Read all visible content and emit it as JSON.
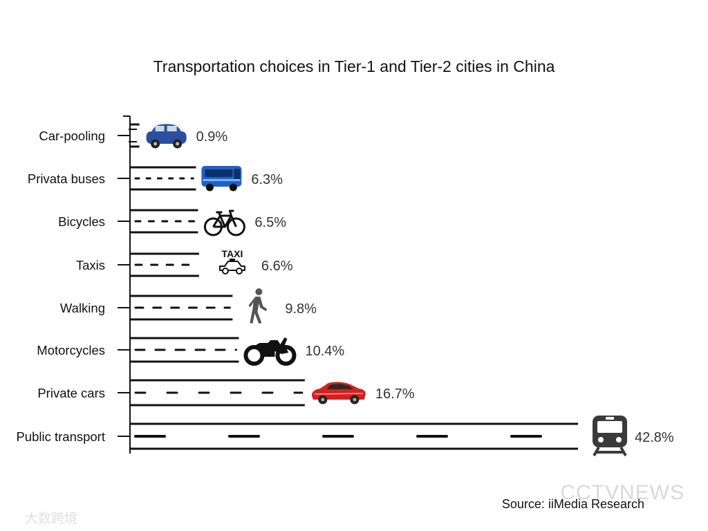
{
  "chart_data": {
    "type": "bar",
    "orientation": "horizontal",
    "title": "Transportation choices in Tier-1 and Tier-2 cities in China",
    "categories": [
      "Car-pooling",
      "Privata buses",
      "Bicycles",
      "Taxis",
      "Walking",
      "Motorcycles",
      "Private cars",
      "Public transport"
    ],
    "values": [
      0.9,
      6.3,
      6.5,
      6.6,
      9.8,
      10.4,
      16.7,
      42.8
    ],
    "value_labels": [
      "0.9%",
      "6.3%",
      "6.5%",
      "6.6%",
      "9.8%",
      "10.4%",
      "16.7%",
      "42.8%"
    ],
    "icons": [
      "mini-car-icon",
      "bus-icon",
      "bicycle-icon",
      "taxi-icon",
      "walking-person-icon",
      "motorcycle-icon",
      "sports-car-icon",
      "train-icon"
    ],
    "taxi_sign": "TAXI",
    "unit": "%",
    "xlim": [
      0,
      42.8
    ],
    "grid": false,
    "legend": "none",
    "colors": {
      "road": "#111111",
      "mini_car": "#2a4fa0",
      "bus": "#1d62c8",
      "sports_car": "#d62020",
      "train": "#3a3a3a",
      "walker": "#555555"
    }
  },
  "source": "Source: iiMedia Research",
  "watermark": "CCTVNEWS",
  "watermark_corner": "大数跨境"
}
